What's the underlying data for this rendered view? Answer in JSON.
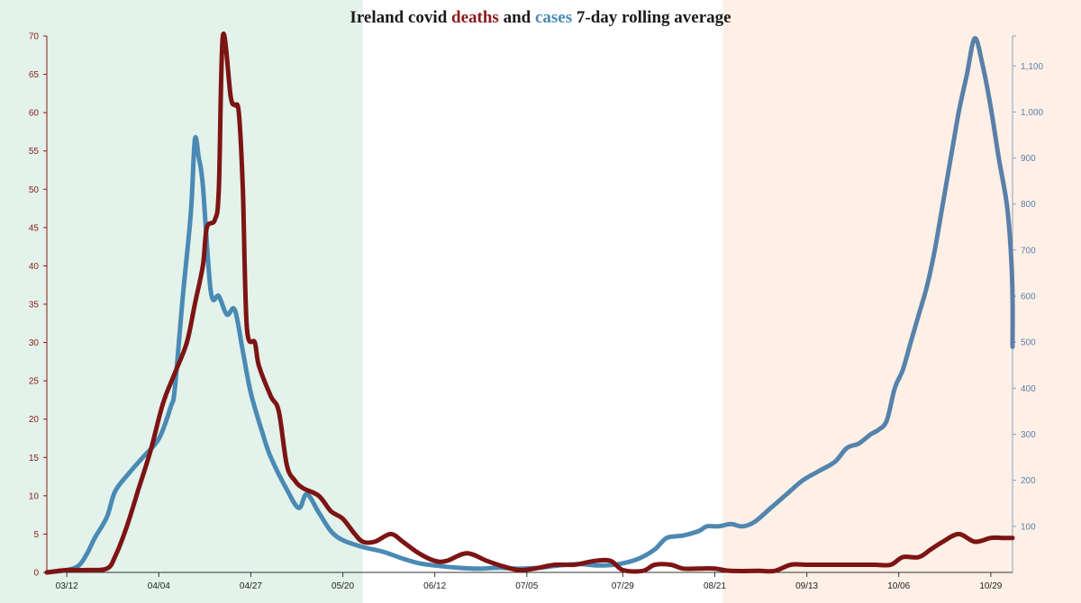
{
  "title": {
    "part1": "Ireland covid ",
    "part2": "deaths",
    "part3": " and ",
    "part4": "cases",
    "part5": " 7-day rolling average"
  },
  "colors": {
    "deaths": "#7d1414",
    "cases": "#4a8ab4",
    "cases_late": "#5a7fa8",
    "band_left": "#e3f2ea",
    "band_right": "#fef0e6",
    "title_deaths": "#8b1a1a",
    "title_cases": "#4a8ab4"
  },
  "chart_data": {
    "type": "line",
    "title": "Ireland covid deaths and cases 7-day rolling average",
    "x_start": "03/07",
    "x_end": "11/05",
    "x_tick_labels": [
      "03/12",
      "04/04",
      "04/27",
      "05/20",
      "06/12",
      "07/05",
      "07/29",
      "08/21",
      "09/13",
      "10/06",
      "10/29"
    ],
    "x_tick_dates": [
      "03/12",
      "04/04",
      "04/27",
      "05/20",
      "06/12",
      "07/05",
      "07/29",
      "08/21",
      "09/13",
      "10/06",
      "10/29"
    ],
    "bands": [
      {
        "from": "03/07",
        "to": "05/25",
        "color": "green"
      },
      {
        "from": "08/23",
        "to": "11/05",
        "color": "orange"
      }
    ],
    "left_axis": {
      "label": "deaths",
      "ylim": [
        0,
        70
      ],
      "ticks": [
        0,
        5,
        10,
        15,
        20,
        25,
        30,
        35,
        40,
        45,
        50,
        55,
        60,
        65,
        70
      ]
    },
    "right_axis": {
      "label": "cases",
      "ylim": [
        0,
        1165
      ],
      "ticks": [
        100,
        200,
        300,
        400,
        500,
        600,
        700,
        800,
        900,
        1000,
        1100
      ],
      "tick_labels": [
        "100",
        "200",
        "300",
        "400",
        "500",
        "600",
        "700",
        "800",
        "900",
        "1,000",
        "1,100"
      ]
    },
    "series": [
      {
        "name": "deaths",
        "axis": "left",
        "points": [
          [
            "03/07",
            0
          ],
          [
            "03/12",
            0.3
          ],
          [
            "03/17",
            0.3
          ],
          [
            "03/22",
            0.5
          ],
          [
            "03/24",
            2
          ],
          [
            "03/27",
            6
          ],
          [
            "03/30",
            11
          ],
          [
            "04/02",
            16
          ],
          [
            "04/05",
            22
          ],
          [
            "04/08",
            26
          ],
          [
            "04/11",
            30
          ],
          [
            "04/13",
            35
          ],
          [
            "04/15",
            40
          ],
          [
            "04/16",
            45
          ],
          [
            "04/18",
            46
          ],
          [
            "04/19",
            50
          ],
          [
            "04/20",
            70
          ],
          [
            "04/22",
            62
          ],
          [
            "04/23",
            61
          ],
          [
            "04/24",
            60
          ],
          [
            "04/25",
            50
          ],
          [
            "04/26",
            32
          ],
          [
            "04/28",
            30
          ],
          [
            "04/29",
            27
          ],
          [
            "05/02",
            23
          ],
          [
            "05/04",
            21
          ],
          [
            "05/06",
            14
          ],
          [
            "05/08",
            12
          ],
          [
            "05/10",
            11
          ],
          [
            "05/14",
            10
          ],
          [
            "05/17",
            8
          ],
          [
            "05/20",
            7
          ],
          [
            "05/23",
            5
          ],
          [
            "05/25",
            4
          ],
          [
            "05/28",
            4
          ],
          [
            "06/01",
            5
          ],
          [
            "06/04",
            4
          ],
          [
            "06/08",
            2.5
          ],
          [
            "06/12",
            1.5
          ],
          [
            "06/15",
            1.5
          ],
          [
            "06/20",
            2.5
          ],
          [
            "06/25",
            1.5
          ],
          [
            "06/29",
            0.8
          ],
          [
            "07/03",
            0.3
          ],
          [
            "07/07",
            0.5
          ],
          [
            "07/12",
            1
          ],
          [
            "07/17",
            1
          ],
          [
            "07/22",
            1.5
          ],
          [
            "07/26",
            1.5
          ],
          [
            "07/29",
            0.3
          ],
          [
            "08/03",
            0.2
          ],
          [
            "08/06",
            1
          ],
          [
            "08/10",
            1
          ],
          [
            "08/13",
            0.5
          ],
          [
            "08/17",
            0.5
          ],
          [
            "08/21",
            0.5
          ],
          [
            "08/25",
            0.2
          ],
          [
            "09/01",
            0.2
          ],
          [
            "09/05",
            0.2
          ],
          [
            "09/09",
            1
          ],
          [
            "09/13",
            1
          ],
          [
            "09/17",
            1
          ],
          [
            "09/21",
            1
          ],
          [
            "09/25",
            1
          ],
          [
            "09/30",
            1
          ],
          [
            "10/04",
            1
          ],
          [
            "10/07",
            2
          ],
          [
            "10/11",
            2
          ],
          [
            "10/14",
            3
          ],
          [
            "10/17",
            4
          ],
          [
            "10/21",
            5
          ],
          [
            "10/25",
            4
          ],
          [
            "10/29",
            4.5
          ],
          [
            "11/01",
            4.5
          ],
          [
            "11/04",
            4.5
          ]
        ]
      },
      {
        "name": "cases",
        "axis": "right",
        "points": [
          [
            "03/07",
            0
          ],
          [
            "03/12",
            5
          ],
          [
            "03/15",
            15
          ],
          [
            "03/17",
            40
          ],
          [
            "03/19",
            75
          ],
          [
            "03/22",
            120
          ],
          [
            "03/24",
            175
          ],
          [
            "03/27",
            210
          ],
          [
            "03/31",
            250
          ],
          [
            "04/04",
            290
          ],
          [
            "04/07",
            360
          ],
          [
            "04/08",
            400
          ],
          [
            "04/10",
            600
          ],
          [
            "04/12",
            780
          ],
          [
            "04/13",
            940
          ],
          [
            "04/14",
            900
          ],
          [
            "04/15",
            840
          ],
          [
            "04/17",
            610
          ],
          [
            "04/19",
            600
          ],
          [
            "04/21",
            560
          ],
          [
            "04/23",
            570
          ],
          [
            "04/25",
            480
          ],
          [
            "04/27",
            390
          ],
          [
            "04/30",
            300
          ],
          [
            "05/02",
            250
          ],
          [
            "05/06",
            180
          ],
          [
            "05/09",
            140
          ],
          [
            "05/11",
            170
          ],
          [
            "05/14",
            130
          ],
          [
            "05/17",
            90
          ],
          [
            "05/20",
            70
          ],
          [
            "05/25",
            55
          ],
          [
            "05/30",
            45
          ],
          [
            "06/04",
            30
          ],
          [
            "06/08",
            20
          ],
          [
            "06/12",
            15
          ],
          [
            "06/18",
            10
          ],
          [
            "06/23",
            8
          ],
          [
            "06/28",
            10
          ],
          [
            "07/03",
            8
          ],
          [
            "07/08",
            10
          ],
          [
            "07/13",
            15
          ],
          [
            "07/18",
            18
          ],
          [
            "07/23",
            15
          ],
          [
            "07/28",
            18
          ],
          [
            "08/02",
            30
          ],
          [
            "08/06",
            50
          ],
          [
            "08/09",
            75
          ],
          [
            "08/13",
            80
          ],
          [
            "08/17",
            90
          ],
          [
            "08/19",
            100
          ],
          [
            "08/22",
            100
          ],
          [
            "08/25",
            105
          ],
          [
            "08/28",
            100
          ],
          [
            "08/31",
            110
          ],
          [
            "09/04",
            140
          ],
          [
            "09/08",
            170
          ],
          [
            "09/12",
            200
          ],
          [
            "09/16",
            220
          ],
          [
            "09/20",
            240
          ],
          [
            "09/23",
            270
          ],
          [
            "09/26",
            280
          ],
          [
            "09/29",
            300
          ],
          [
            "10/01",
            310
          ],
          [
            "10/03",
            330
          ],
          [
            "10/05",
            400
          ],
          [
            "10/07",
            440
          ],
          [
            "10/09",
            500
          ],
          [
            "10/11",
            560
          ],
          [
            "10/13",
            620
          ],
          [
            "10/15",
            700
          ],
          [
            "10/17",
            800
          ],
          [
            "10/19",
            900
          ],
          [
            "10/21",
            1000
          ],
          [
            "10/23",
            1080
          ],
          [
            "10/25",
            1160
          ],
          [
            "10/27",
            1100
          ],
          [
            "10/29",
            1010
          ],
          [
            "10/31",
            900
          ],
          [
            "11/02",
            800
          ],
          [
            "11/03",
            700
          ],
          [
            "11/04",
            600
          ],
          [
            "11/05",
            490
          ]
        ]
      }
    ]
  }
}
